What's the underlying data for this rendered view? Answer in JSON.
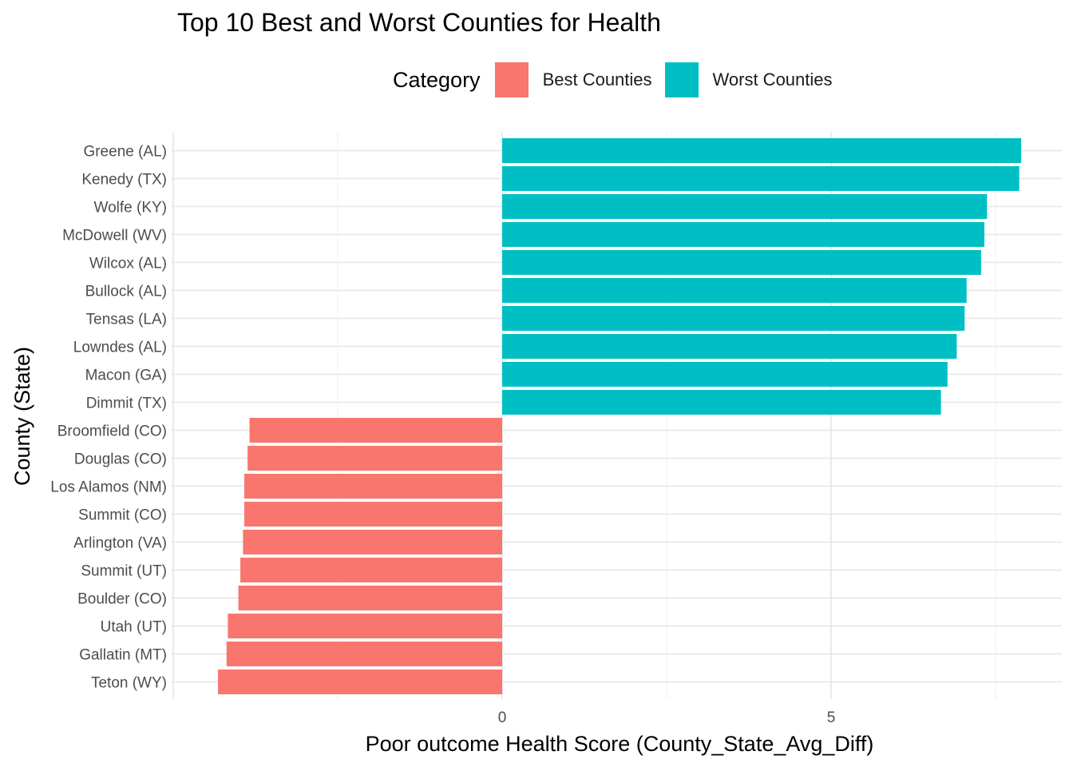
{
  "chart_data": {
    "type": "bar",
    "orientation": "horizontal",
    "title": "Top 10 Best and Worst Counties for Health",
    "xlabel": "Poor outcome Health Score (County_State_Avg_Diff)",
    "ylabel": "County (State)",
    "xlim": [
      -5.2,
      8.5
    ],
    "xticks": [
      0,
      5
    ],
    "grid": true,
    "legend": {
      "title": "Category",
      "placement": "top",
      "entries": [
        {
          "label": "Best Counties",
          "color": "#F8766D"
        },
        {
          "label": "Worst Counties",
          "color": "#00BFC4"
        }
      ]
    },
    "categories": [
      "Teton (WY)",
      "Gallatin (MT)",
      "Utah (UT)",
      "Boulder (CO)",
      "Summit (UT)",
      "Arlington (VA)",
      "Summit (CO)",
      "Los Alamos (NM)",
      "Douglas (CO)",
      "Broomfield (CO)",
      "Dimmit (TX)",
      "Macon (GA)",
      "Lowndes (AL)",
      "Tensas (LA)",
      "Bullock (AL)",
      "Wilcox (AL)",
      "McDowell (WV)",
      "Wolfe (KY)",
      "Kenedy (TX)",
      "Greene (AL)"
    ],
    "values": [
      -4.32,
      -4.19,
      -4.17,
      -4.01,
      -3.98,
      -3.94,
      -3.92,
      -3.92,
      -3.87,
      -3.84,
      6.67,
      6.77,
      6.91,
      7.03,
      7.06,
      7.28,
      7.33,
      7.37,
      7.86,
      7.89
    ],
    "groups": [
      "Best Counties",
      "Best Counties",
      "Best Counties",
      "Best Counties",
      "Best Counties",
      "Best Counties",
      "Best Counties",
      "Best Counties",
      "Best Counties",
      "Best Counties",
      "Worst Counties",
      "Worst Counties",
      "Worst Counties",
      "Worst Counties",
      "Worst Counties",
      "Worst Counties",
      "Worst Counties",
      "Worst Counties",
      "Worst Counties",
      "Worst Counties"
    ]
  }
}
